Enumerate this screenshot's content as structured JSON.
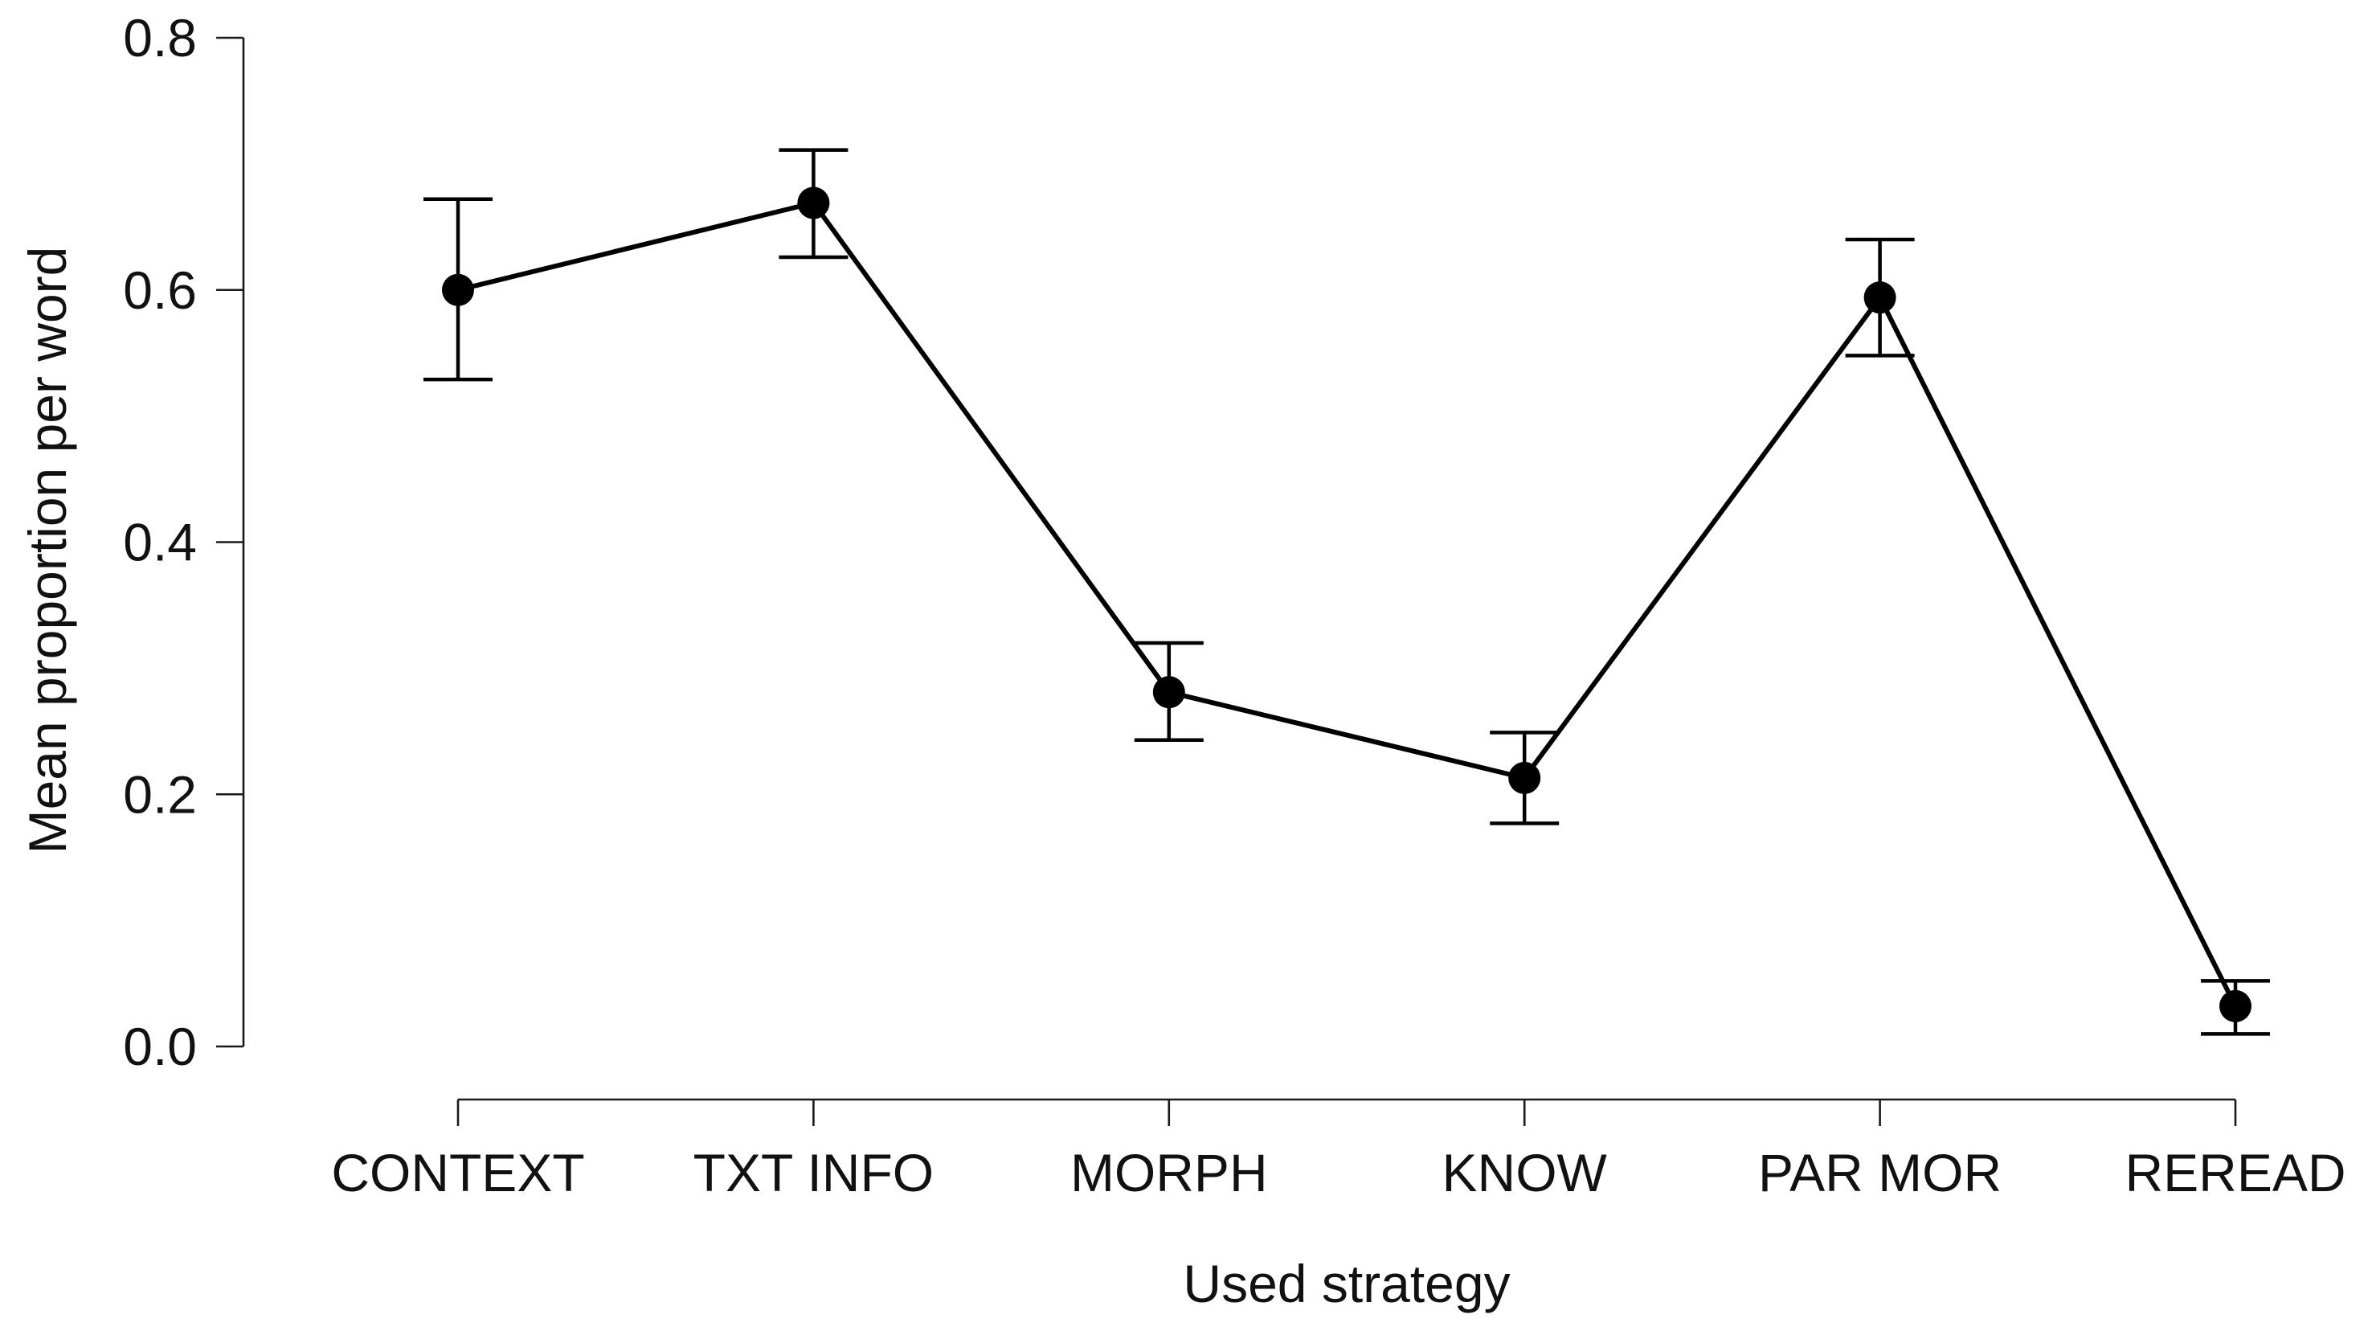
{
  "chart_data": {
    "type": "line",
    "title": "",
    "xlabel": "Used strategy",
    "ylabel": "Mean proportion per word",
    "categories": [
      "CONTEXT",
      "TXT INFO",
      "MORPH",
      "KNOW",
      "PAR MOR",
      "REREAD"
    ],
    "series": [
      {
        "values": [
          0.6,
          0.669,
          0.281,
          0.213,
          0.594,
          0.032
        ],
        "error_upper": [
          0.672,
          0.711,
          0.32,
          0.249,
          0.64,
          0.052
        ],
        "error_lower": [
          0.529,
          0.626,
          0.243,
          0.177,
          0.548,
          0.01
        ]
      }
    ],
    "ylim": [
      0,
      0.8
    ],
    "yticks": [
      "0.0",
      "0.2",
      "0.4",
      "0.6",
      "0.8"
    ],
    "ytick_values": [
      0,
      0.2,
      0.4,
      0.6,
      0.8
    ],
    "grid": false,
    "legend": "none",
    "colors": {
      "line": "#000000",
      "axis": "#1a1a1a"
    }
  }
}
